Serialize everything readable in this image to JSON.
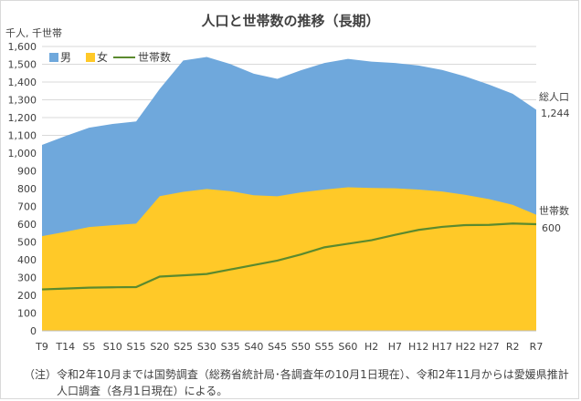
{
  "chart_data": {
    "type": "area",
    "title": "人口と世帯数の推移（長期）",
    "yunit": "千人, 千世帯",
    "ylim": [
      0,
      1600
    ],
    "ytick_step": 100,
    "grid": true,
    "legend_placement": "top-left",
    "categories": [
      "T9",
      "T14",
      "S5",
      "S10",
      "S15",
      "S20",
      "S25",
      "S30",
      "S35",
      "S40",
      "S45",
      "S50",
      "S55",
      "S60",
      "H2",
      "H7",
      "H12",
      "H17",
      "H22",
      "H27",
      "R2",
      "R7"
    ],
    "series": [
      {
        "name": "男",
        "kind": "area",
        "color": "#6fa8dc",
        "total_values": [
          1046,
          1096,
          1143,
          1164,
          1178,
          1361,
          1521,
          1541,
          1501,
          1447,
          1418,
          1466,
          1507,
          1530,
          1515,
          1507,
          1493,
          1468,
          1431,
          1385,
          1334,
          1244
        ]
      },
      {
        "name": "女",
        "kind": "area",
        "color": "#ffc928",
        "values": [
          533,
          557,
          584,
          594,
          603,
          758,
          782,
          798,
          786,
          763,
          757,
          779,
          795,
          808,
          804,
          802,
          795,
          784,
          765,
          741,
          709,
          653
        ]
      },
      {
        "name": "世帯数",
        "kind": "line",
        "color": "#5b8a2e",
        "values": [
          233,
          238,
          243,
          245,
          246,
          305,
          312,
          320,
          345,
          370,
          395,
          430,
          470,
          490,
          510,
          540,
          568,
          585,
          595,
          596,
          604,
          600
        ]
      }
    ],
    "annotations": [
      {
        "label": "総人口",
        "value": "1,244"
      },
      {
        "label": "世帯数",
        "value": "600"
      }
    ],
    "note_line1": "（注）令和2年10月までは国勢調査（総務省統計局･各調査年の10月1日現在）、令和2年11月からは愛媛県推計",
    "note_line2": "人口調査（各月1日現在）による。"
  }
}
